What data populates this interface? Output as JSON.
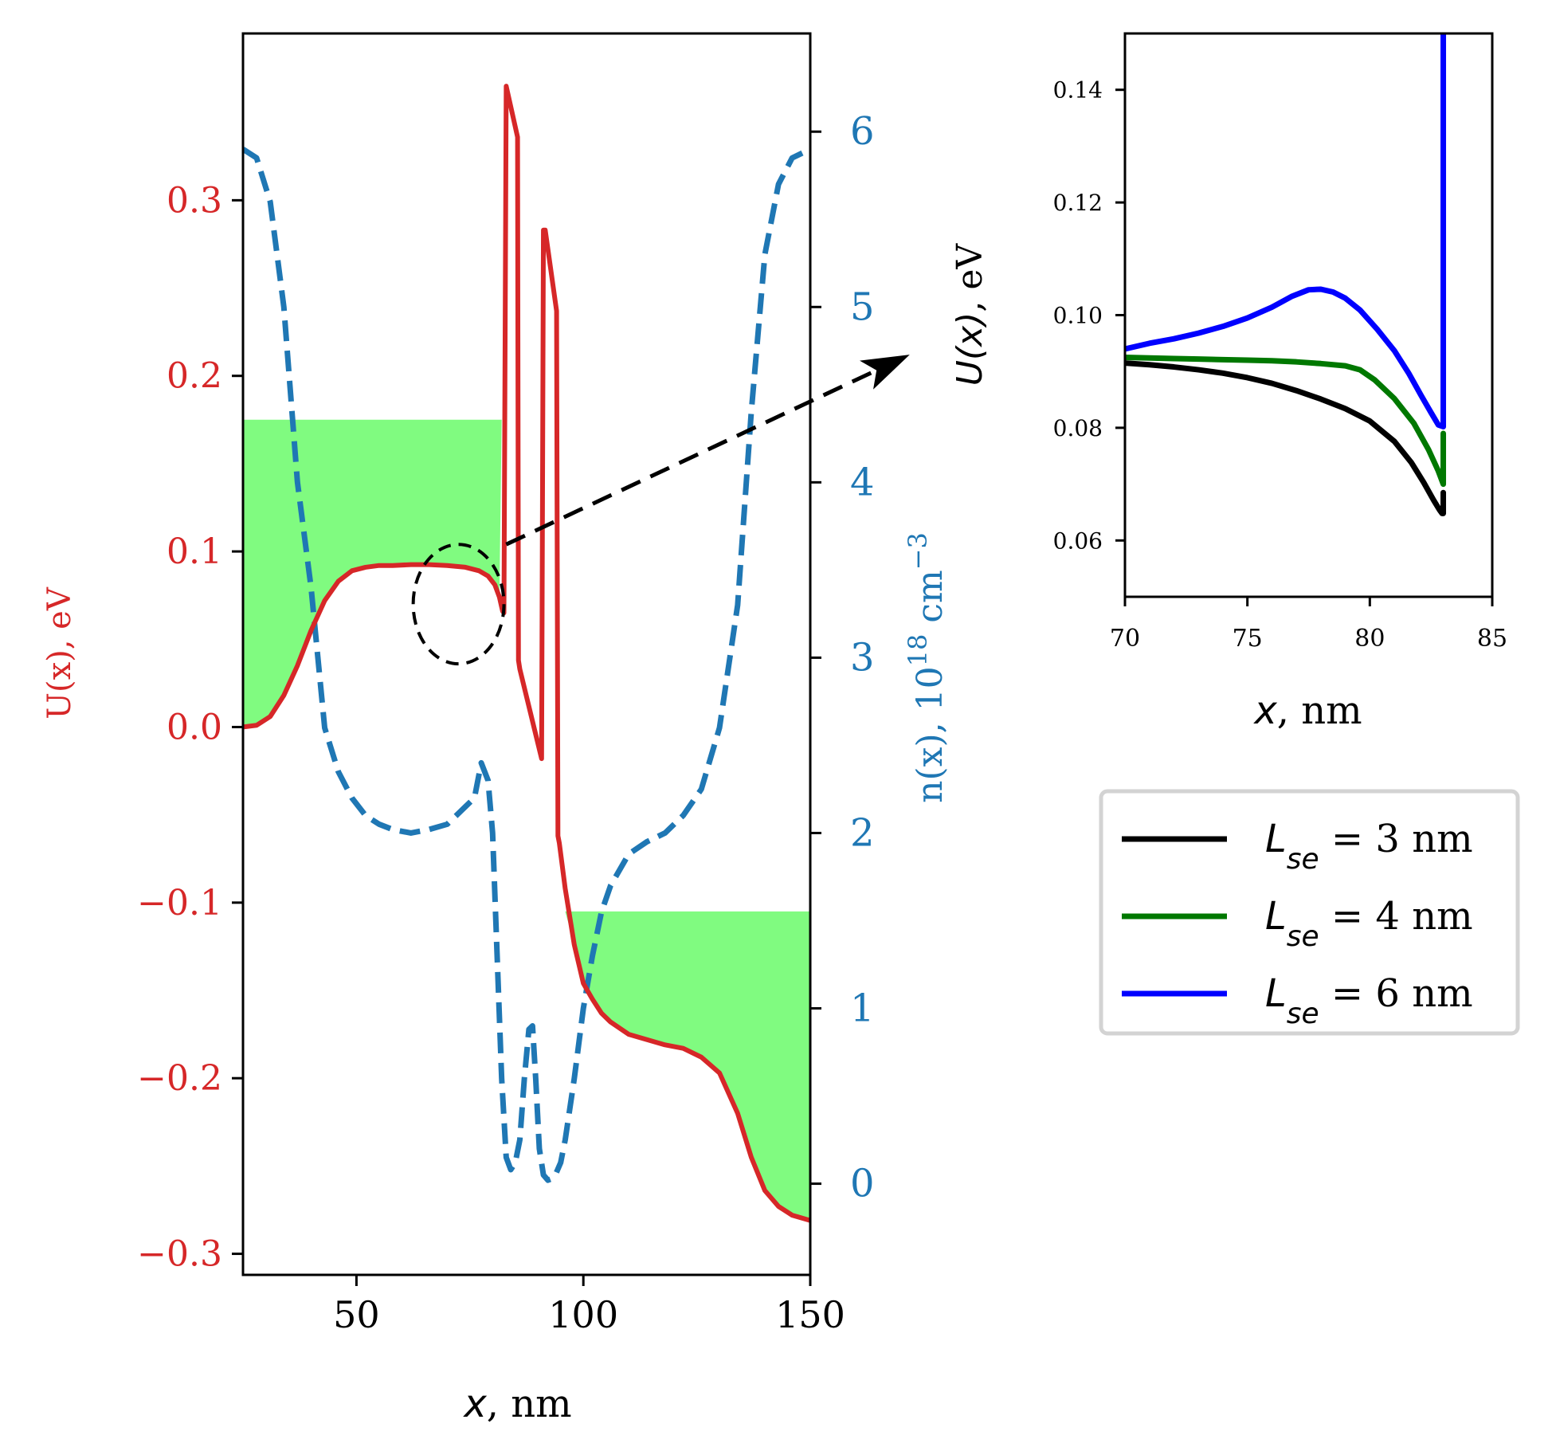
{
  "chart_data": [
    {
      "name": "main-panel",
      "type": "line",
      "xlabel_var": "x",
      "xlabel_unit": ", nm",
      "ylabel_left": "U(x), eV",
      "ylabel_right_prefix": "n(x), 10",
      "ylabel_right_exp": "18",
      "ylabel_right_unit": " cm",
      "ylabel_right_unit_exp": "−3",
      "xlim": [
        25,
        150
      ],
      "ylim_left": [
        -0.312,
        0.395
      ],
      "ylim_right": [
        -0.52,
        6.56
      ],
      "xticks": [
        50,
        100,
        150
      ],
      "xtick_labels": [
        "50",
        "100",
        "150"
      ],
      "yticks_left": [
        -0.3,
        -0.2,
        -0.1,
        0.0,
        0.1,
        0.2,
        0.3
      ],
      "ytick_labels_left": [
        "−0.3",
        "−0.2",
        "−0.1",
        "0.0",
        "0.1",
        "0.2",
        "0.3"
      ],
      "yticks_right": [
        0,
        1,
        2,
        3,
        4,
        5,
        6
      ],
      "ytick_labels_right": [
        "0",
        "1",
        "2",
        "3",
        "4",
        "5",
        "6"
      ],
      "colors": {
        "potential": "#d62728",
        "density": "#1f77b4",
        "fermi_fill": "#80fb80",
        "arrow": "#000000"
      },
      "fill_regions": [
        {
          "name": "left-contact",
          "x_start": 25,
          "x_end": 82,
          "top": 0.175
        },
        {
          "name": "right-contact",
          "x_start": 95,
          "x_end": 150,
          "top": -0.105
        }
      ],
      "series": [
        {
          "name": "U(x)",
          "axis": "left",
          "style": "solid",
          "x": [
            25,
            28,
            31,
            34,
            37,
            40,
            43,
            46,
            49,
            52,
            55,
            58,
            62,
            66,
            70,
            74,
            77,
            79,
            80.5,
            81.5,
            82.2,
            82.5,
            83.0,
            85.5,
            85.7,
            86.0,
            90.8,
            91.2,
            91.6,
            94.1,
            94.4,
            94.7,
            96,
            98,
            100,
            102,
            104,
            106,
            110,
            114,
            118,
            122,
            126,
            130,
            134,
            137,
            140,
            143,
            146,
            150
          ],
          "y": [
            0.0,
            0.001,
            0.006,
            0.018,
            0.035,
            0.055,
            0.072,
            0.083,
            0.089,
            0.091,
            0.092,
            0.092,
            0.0925,
            0.0925,
            0.092,
            0.091,
            0.089,
            0.086,
            0.081,
            0.074,
            0.066,
            0.065,
            0.365,
            0.336,
            0.038,
            0.033,
            -0.018,
            0.283,
            0.283,
            0.237,
            -0.062,
            -0.066,
            -0.092,
            -0.124,
            -0.146,
            -0.155,
            -0.163,
            -0.168,
            -0.175,
            -0.178,
            -0.181,
            -0.183,
            -0.188,
            -0.197,
            -0.22,
            -0.245,
            -0.264,
            -0.273,
            -0.278,
            -0.281
          ]
        },
        {
          "name": "n(x)",
          "axis": "right",
          "style": "dashed",
          "x": [
            25,
            28,
            31,
            34,
            37,
            40,
            43,
            46,
            49,
            52,
            55,
            58,
            62,
            66,
            70,
            74,
            76,
            77.5,
            79,
            80,
            81,
            82,
            83,
            84,
            85,
            86,
            87,
            88,
            88.8,
            89.5,
            90.3,
            91.2,
            92.2,
            93.2,
            94,
            95,
            96,
            98,
            100,
            102,
            104,
            106,
            110,
            114,
            118,
            122,
            126,
            130,
            134,
            137,
            140,
            143,
            146,
            150
          ],
          "y": [
            5.9,
            5.85,
            5.6,
            5.0,
            4.0,
            3.4,
            2.6,
            2.35,
            2.2,
            2.1,
            2.05,
            2.02,
            2.0,
            2.02,
            2.05,
            2.15,
            2.2,
            2.4,
            2.3,
            2.0,
            1.3,
            0.6,
            0.15,
            0.08,
            0.12,
            0.25,
            0.6,
            0.88,
            0.9,
            0.6,
            0.2,
            0.05,
            0.02,
            0.03,
            0.06,
            0.12,
            0.25,
            0.6,
            1.0,
            1.3,
            1.55,
            1.7,
            1.88,
            1.95,
            2.0,
            2.1,
            2.25,
            2.6,
            3.3,
            4.4,
            5.3,
            5.7,
            5.85,
            5.9
          ]
        }
      ],
      "annotations": [
        {
          "name": "zoom-circle",
          "type": "dashed-ellipse",
          "center": [
            72.5,
            0.07
          ],
          "semi_axes": [
            10,
            0.034
          ]
        },
        {
          "name": "zoom-arrow",
          "type": "dashed-arrow",
          "from_data": [
            83,
            0.104
          ],
          "to_note": "points to inset panel"
        }
      ]
    },
    {
      "name": "inset-panel",
      "type": "line",
      "xlabel_var": "x",
      "xlabel_unit": ", nm",
      "ylabel_var": "U(x)",
      "ylabel_unit": ", eV",
      "xlim": [
        70,
        85
      ],
      "ylim": [
        0.05,
        0.15
      ],
      "xticks": [
        70,
        75,
        80,
        85
      ],
      "xtick_labels": [
        "70",
        "75",
        "80",
        "85"
      ],
      "yticks": [
        0.06,
        0.08,
        0.1,
        0.12,
        0.14
      ],
      "ytick_labels": [
        "0.06",
        "0.08",
        "0.10",
        "0.12",
        "0.14"
      ],
      "series": [
        {
          "name": "Lse = 3 nm",
          "legend_label": {
            "L": "L",
            "sub": "se",
            "rest": " = 3 nm"
          },
          "color": "#000000",
          "x": [
            70,
            71,
            72,
            73,
            74,
            75,
            76,
            77,
            78,
            79,
            80,
            81,
            81.7,
            82.2,
            82.6,
            82.85,
            82.95,
            83.0,
            83.0
          ],
          "y": [
            0.0915,
            0.0912,
            0.0908,
            0.0903,
            0.0897,
            0.0889,
            0.0879,
            0.0866,
            0.0851,
            0.0834,
            0.0812,
            0.0776,
            0.0738,
            0.0703,
            0.0672,
            0.0654,
            0.0648,
            0.0648,
            0.0685
          ]
        },
        {
          "name": "Lse = 4 nm",
          "legend_label": {
            "L": "L",
            "sub": "se",
            "rest": " = 4 nm"
          },
          "color": "#007800",
          "x": [
            70,
            71,
            72,
            73,
            74,
            75,
            76,
            77,
            78,
            79,
            79.6,
            80.2,
            81,
            81.8,
            82.4,
            82.8,
            83.0,
            83.0
          ],
          "y": [
            0.0925,
            0.0924,
            0.0923,
            0.0922,
            0.0921,
            0.092,
            0.0919,
            0.0917,
            0.0914,
            0.091,
            0.0903,
            0.0885,
            0.0852,
            0.0808,
            0.0761,
            0.0723,
            0.07,
            0.079
          ]
        },
        {
          "name": "Lse = 6 nm",
          "legend_label": {
            "L": "L",
            "sub": "se",
            "rest": " = 6 nm"
          },
          "color": "#0000ff",
          "x": [
            70,
            71,
            72,
            73,
            74,
            75,
            76,
            76.8,
            77.5,
            78,
            78.5,
            79,
            79.6,
            80.3,
            81,
            81.6,
            82.1,
            82.5,
            82.8,
            83.0,
            83.0
          ],
          "y": [
            0.094,
            0.095,
            0.0958,
            0.0968,
            0.098,
            0.0995,
            0.1014,
            0.1033,
            0.1045,
            0.1046,
            0.1041,
            0.103,
            0.1009,
            0.0975,
            0.0937,
            0.0896,
            0.0857,
            0.0827,
            0.0805,
            0.0802,
            0.155
          ]
        }
      ],
      "legend": {
        "position": "below-inset",
        "frame": true
      }
    }
  ]
}
